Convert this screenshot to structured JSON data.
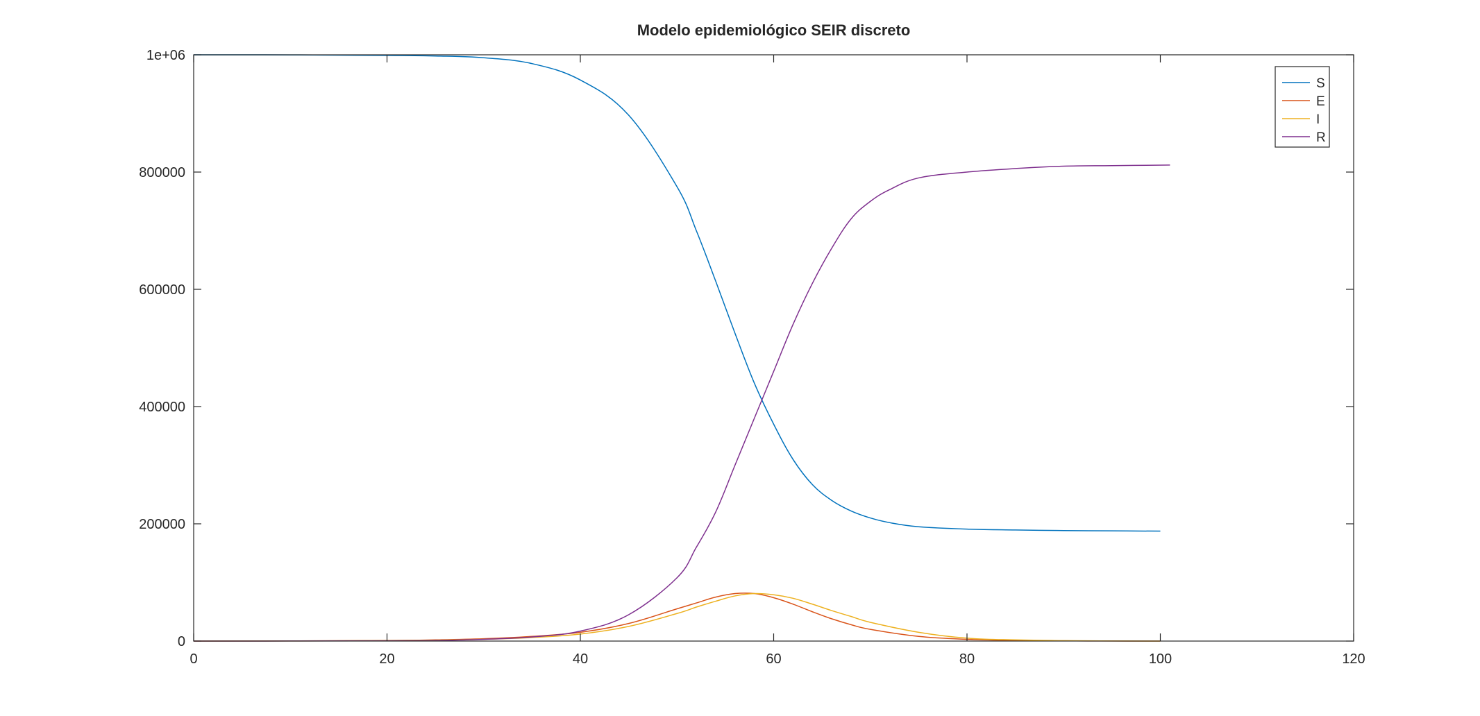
{
  "chart_data": {
    "type": "line",
    "title": "Modelo epidemiológico SEIR discreto",
    "xlabel": "",
    "ylabel": "",
    "xlim": [
      0,
      120
    ],
    "ylim": [
      0,
      1000000
    ],
    "x_ticks": [
      0,
      20,
      40,
      60,
      80,
      100,
      120
    ],
    "x_tick_labels": [
      "0",
      "20",
      "40",
      "60",
      "80",
      "100",
      "120"
    ],
    "y_ticks": [
      0,
      200000,
      400000,
      600000,
      800000,
      1000000
    ],
    "y_tick_labels": [
      "0",
      "200000",
      "400000",
      "600000",
      "800000",
      "1e+06"
    ],
    "grid": false,
    "legend_position": "top-right",
    "series": [
      {
        "name": "S",
        "color": "#0072bd",
        "x": [
          0,
          10,
          20,
          25,
          30,
          35,
          40,
          45,
          50,
          52,
          54,
          56,
          58,
          60,
          62,
          64,
          66,
          68,
          70,
          72,
          75,
          80,
          85,
          90,
          95,
          100
        ],
        "y": [
          1000000,
          999900,
          999000,
          998000,
          995000,
          985000,
          957000,
          897000,
          775000,
          700000,
          614000,
          525000,
          440000,
          370000,
          310000,
          267000,
          240000,
          222000,
          210000,
          202000,
          195000,
          191000,
          189500,
          188500,
          188000,
          187500
        ]
      },
      {
        "name": "E",
        "color": "#d95319",
        "x": [
          0,
          10,
          20,
          25,
          30,
          35,
          40,
          45,
          50,
          52,
          54,
          56,
          58,
          60,
          62,
          64,
          66,
          68,
          70,
          75,
          80,
          85,
          90,
          95,
          100
        ],
        "y": [
          0,
          300,
          1000,
          2000,
          4000,
          8000,
          15000,
          30000,
          55000,
          65000,
          75000,
          81000,
          81000,
          74000,
          63000,
          50000,
          38000,
          28000,
          20000,
          8000,
          3000,
          1000,
          400,
          100,
          0
        ]
      },
      {
        "name": "I",
        "color": "#edb120",
        "x": [
          0,
          10,
          20,
          25,
          30,
          35,
          40,
          45,
          50,
          52,
          54,
          56,
          58,
          60,
          62,
          64,
          66,
          68,
          70,
          75,
          80,
          85,
          90,
          95,
          100
        ],
        "y": [
          0,
          150,
          700,
          1500,
          3000,
          6000,
          12000,
          25000,
          47000,
          58000,
          68000,
          77000,
          81000,
          79000,
          73000,
          63000,
          52000,
          42000,
          32000,
          15000,
          5000,
          2000,
          700,
          200,
          0
        ]
      },
      {
        "name": "R",
        "color": "#7e2f8e",
        "x": [
          0,
          10,
          20,
          25,
          30,
          35,
          40,
          45,
          50,
          52,
          54,
          56,
          58,
          60,
          62,
          64,
          66,
          68,
          70,
          72,
          75,
          80,
          85,
          90,
          95,
          101
        ],
        "y": [
          0,
          100,
          500,
          1000,
          3000,
          7000,
          17000,
          45000,
          108000,
          160000,
          220000,
          300000,
          380000,
          460000,
          540000,
          610000,
          670000,
          720000,
          750000,
          770000,
          790000,
          800000,
          806000,
          810000,
          811000,
          812000
        ]
      }
    ]
  }
}
